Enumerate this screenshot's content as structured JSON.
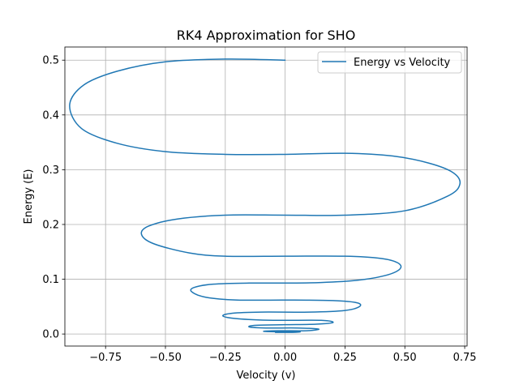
{
  "chart_data": {
    "type": "line",
    "title": "RK4 Approximation for SHO",
    "xlabel": "Velocity (v)",
    "ylabel": "Energy (E)",
    "xlim": [
      -0.92,
      0.76
    ],
    "ylim": [
      -0.022,
      0.524
    ],
    "xticks": [
      -0.75,
      -0.5,
      -0.25,
      0.0,
      0.25,
      0.5,
      0.75
    ],
    "xtick_labels": [
      "−0.75",
      "−0.50",
      "−0.25",
      "0.00",
      "0.25",
      "0.50",
      "0.75"
    ],
    "yticks": [
      0.0,
      0.1,
      0.2,
      0.3,
      0.4,
      0.5
    ],
    "ytick_labels": [
      "0.0",
      "0.1",
      "0.2",
      "0.3",
      "0.4",
      "0.5"
    ],
    "grid": true,
    "legend_position": "upper right",
    "color": "#1f77b4",
    "series": [
      {
        "name": "Energy vs Velocity",
        "anchors": [
          [
            0.0,
            0.5
          ],
          [
            -0.25,
            0.502
          ],
          [
            -0.5,
            0.497
          ],
          [
            -0.7,
            0.48
          ],
          [
            -0.84,
            0.455
          ],
          [
            -0.9,
            0.418
          ],
          [
            -0.85,
            0.375
          ],
          [
            -0.7,
            0.348
          ],
          [
            -0.5,
            0.333
          ],
          [
            -0.25,
            0.328
          ],
          [
            0.0,
            0.328
          ],
          [
            0.25,
            0.33
          ],
          [
            0.45,
            0.325
          ],
          [
            0.6,
            0.312
          ],
          [
            0.7,
            0.295
          ],
          [
            0.73,
            0.274
          ],
          [
            0.68,
            0.252
          ],
          [
            0.5,
            0.225
          ],
          [
            0.25,
            0.217
          ],
          [
            0.0,
            0.217
          ],
          [
            -0.25,
            0.217
          ],
          [
            -0.45,
            0.21
          ],
          [
            -0.57,
            0.197
          ],
          [
            -0.6,
            0.182
          ],
          [
            -0.55,
            0.165
          ],
          [
            -0.4,
            0.148
          ],
          [
            -0.25,
            0.142
          ],
          [
            0.0,
            0.142
          ],
          [
            0.25,
            0.142
          ],
          [
            0.4,
            0.138
          ],
          [
            0.47,
            0.13
          ],
          [
            0.48,
            0.119
          ],
          [
            0.42,
            0.107
          ],
          [
            0.3,
            0.098
          ],
          [
            0.15,
            0.094
          ],
          [
            0.0,
            0.093
          ],
          [
            -0.15,
            0.093
          ],
          [
            -0.3,
            0.091
          ],
          [
            -0.38,
            0.085
          ],
          [
            -0.39,
            0.077
          ],
          [
            -0.33,
            0.067
          ],
          [
            -0.2,
            0.062
          ],
          [
            0.0,
            0.062
          ],
          [
            0.2,
            0.061
          ],
          [
            0.3,
            0.057
          ],
          [
            0.31,
            0.05
          ],
          [
            0.25,
            0.043
          ],
          [
            0.1,
            0.04
          ],
          [
            -0.1,
            0.04
          ],
          [
            -0.22,
            0.038
          ],
          [
            -0.26,
            0.033
          ],
          [
            -0.2,
            0.028
          ],
          [
            -0.05,
            0.025
          ],
          [
            0.15,
            0.025
          ],
          [
            0.2,
            0.021
          ],
          [
            0.13,
            0.018
          ],
          [
            0.0,
            0.017
          ],
          [
            -0.12,
            0.016
          ],
          [
            -0.15,
            0.013
          ],
          [
            -0.08,
            0.011
          ],
          [
            0.05,
            0.011
          ],
          [
            0.14,
            0.009
          ],
          [
            0.09,
            0.006
          ],
          [
            -0.03,
            0.006
          ],
          [
            -0.09,
            0.005
          ],
          [
            -0.04,
            0.004
          ],
          [
            0.06,
            0.004
          ],
          [
            0.03,
            0.003
          ],
          [
            -0.04,
            0.003
          ],
          [
            0.0,
            0.003
          ]
        ]
      }
    ]
  }
}
